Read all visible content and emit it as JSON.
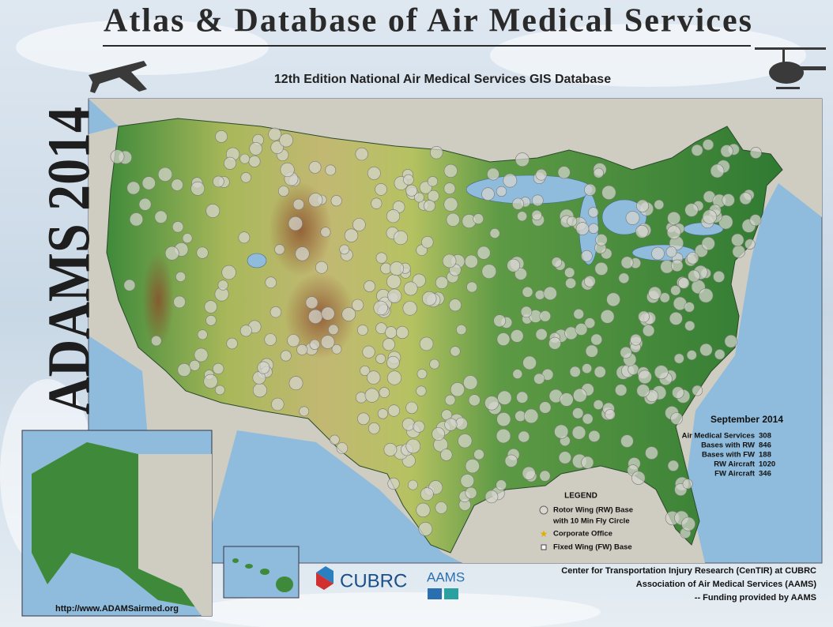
{
  "header": {
    "title": "Atlas & Database of Air Medical Services",
    "subtitle": "12th Edition National Air Medical Services GIS Database",
    "side_title": "ADAMS 2014"
  },
  "summary": {
    "date": "September 2014",
    "rows": [
      {
        "label": "Air Medical Services",
        "value": 308
      },
      {
        "label": "Bases with RW",
        "value": 846
      },
      {
        "label": "Bases with FW",
        "value": 188
      },
      {
        "label": "RW Aircraft",
        "value": 1020
      },
      {
        "label": "FW Aircraft",
        "value": 346
      }
    ]
  },
  "legend": {
    "title": "LEGEND",
    "items": [
      {
        "lines": [
          "Rotor Wing (RW) Base",
          "with 10 Min Fly Circle"
        ]
      },
      {
        "lines": [
          "Corporate Office"
        ]
      },
      {
        "lines": [
          "Fixed Wing (FW) Base"
        ]
      }
    ]
  },
  "footer": {
    "url": "http://www.ADAMSairmed.org",
    "logos": [
      "CUBRC",
      "AAMS"
    ],
    "credits": [
      "Center for Transportation Injury Research (CenTIR) at CUBRC",
      "Association of Air Medical Services (AAMS)",
      "-- Funding provided by AAMS"
    ]
  }
}
